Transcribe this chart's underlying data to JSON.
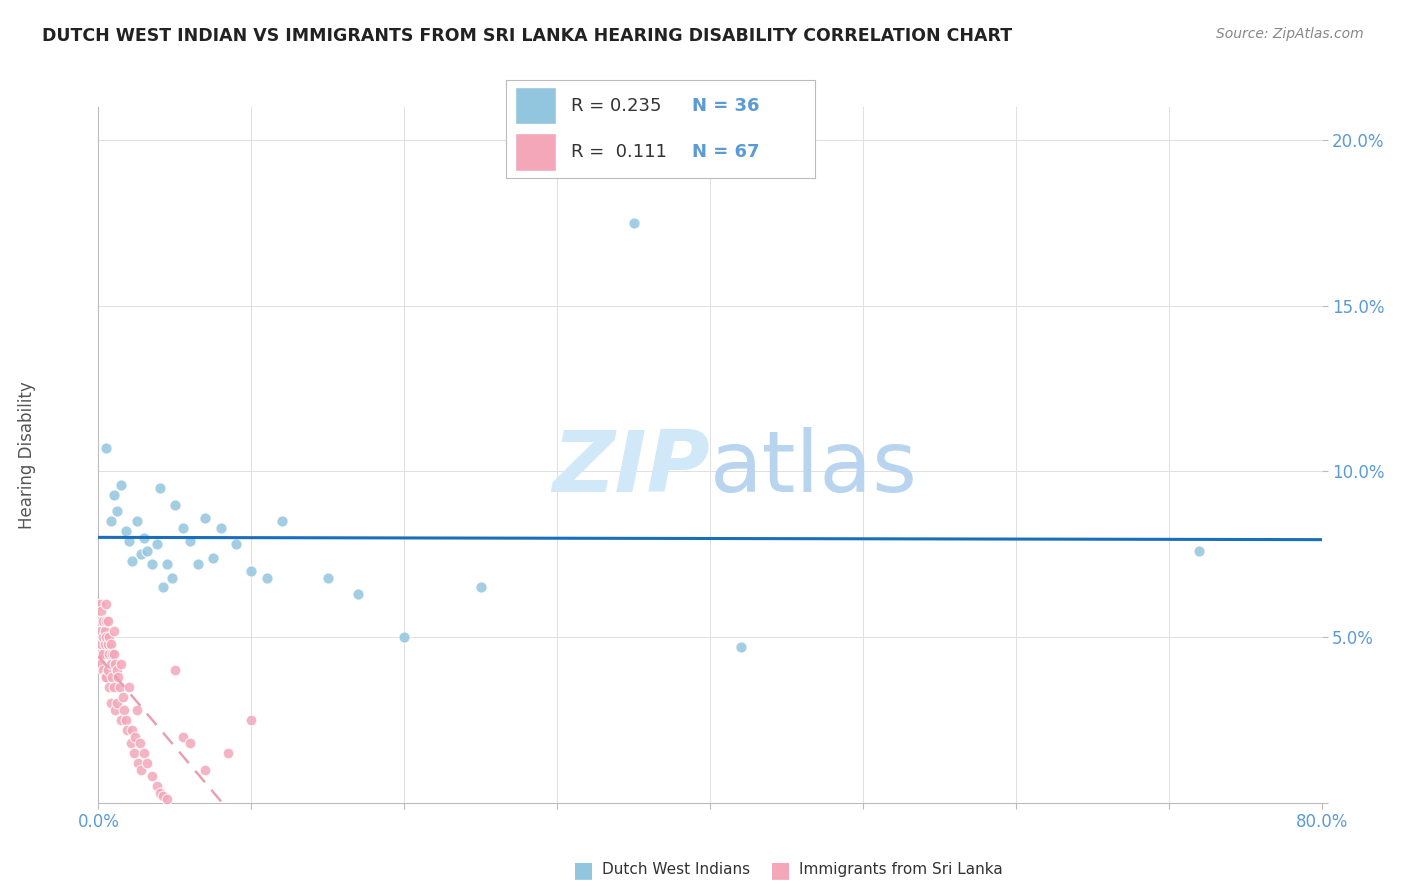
{
  "title": "DUTCH WEST INDIAN VS IMMIGRANTS FROM SRI LANKA HEARING DISABILITY CORRELATION CHART",
  "source": "Source: ZipAtlas.com",
  "ylabel": "Hearing Disability",
  "xlabel": "",
  "xlim": [
    0.0,
    0.8
  ],
  "ylim": [
    0.0,
    0.21
  ],
  "xticks": [
    0.0,
    0.1,
    0.2,
    0.3,
    0.4,
    0.5,
    0.6,
    0.7,
    0.8
  ],
  "xtick_labels": [
    "0.0%",
    "",
    "",
    "",
    "",
    "",
    "",
    "",
    "80.0%"
  ],
  "yticks": [
    0.0,
    0.05,
    0.1,
    0.15,
    0.2
  ],
  "ytick_labels": [
    "",
    "5.0%",
    "10.0%",
    "15.0%",
    "20.0%"
  ],
  "background_color": "#ffffff",
  "grid_color": "#e0e0e0",
  "title_color": "#222222",
  "axis_color": "#5b9bd5",
  "watermark_color": "#d0e8f8",
  "legend_r1_text": "R = 0.235",
  "legend_n1_text": "N = 36",
  "legend_r2_text": "R =  0.111",
  "legend_n2_text": "N = 67",
  "color_blue": "#92c5de",
  "color_pink": "#f4a7b9",
  "trend_blue": "#1a6fbd",
  "trend_pink": "#e8a0b0",
  "blue_x": [
    0.005,
    0.008,
    0.01,
    0.012,
    0.015,
    0.018,
    0.02,
    0.022,
    0.025,
    0.028,
    0.03,
    0.032,
    0.035,
    0.038,
    0.04,
    0.042,
    0.045,
    0.048,
    0.05,
    0.055,
    0.06,
    0.065,
    0.07,
    0.075,
    0.08,
    0.09,
    0.1,
    0.11,
    0.12,
    0.15,
    0.17,
    0.2,
    0.25,
    0.35,
    0.42,
    0.72
  ],
  "blue_y": [
    0.107,
    0.085,
    0.093,
    0.088,
    0.096,
    0.082,
    0.079,
    0.073,
    0.085,
    0.075,
    0.08,
    0.076,
    0.072,
    0.078,
    0.095,
    0.065,
    0.072,
    0.068,
    0.09,
    0.083,
    0.079,
    0.072,
    0.086,
    0.074,
    0.083,
    0.078,
    0.07,
    0.068,
    0.085,
    0.068,
    0.063,
    0.05,
    0.065,
    0.175,
    0.047,
    0.076
  ],
  "pink_x": [
    0.001,
    0.001,
    0.001,
    0.001,
    0.002,
    0.002,
    0.002,
    0.002,
    0.003,
    0.003,
    0.003,
    0.003,
    0.004,
    0.004,
    0.004,
    0.005,
    0.005,
    0.005,
    0.005,
    0.006,
    0.006,
    0.006,
    0.007,
    0.007,
    0.007,
    0.008,
    0.008,
    0.008,
    0.009,
    0.009,
    0.01,
    0.01,
    0.01,
    0.011,
    0.011,
    0.012,
    0.012,
    0.013,
    0.014,
    0.015,
    0.015,
    0.016,
    0.017,
    0.018,
    0.019,
    0.02,
    0.021,
    0.022,
    0.023,
    0.024,
    0.025,
    0.026,
    0.027,
    0.028,
    0.03,
    0.032,
    0.035,
    0.038,
    0.04,
    0.042,
    0.045,
    0.05,
    0.055,
    0.06,
    0.07,
    0.085,
    0.1
  ],
  "pink_y": [
    0.06,
    0.055,
    0.05,
    0.045,
    0.058,
    0.052,
    0.048,
    0.042,
    0.055,
    0.05,
    0.045,
    0.04,
    0.052,
    0.048,
    0.038,
    0.06,
    0.055,
    0.05,
    0.038,
    0.055,
    0.048,
    0.04,
    0.05,
    0.045,
    0.035,
    0.048,
    0.042,
    0.03,
    0.045,
    0.038,
    0.052,
    0.045,
    0.035,
    0.042,
    0.028,
    0.04,
    0.03,
    0.038,
    0.035,
    0.042,
    0.025,
    0.032,
    0.028,
    0.025,
    0.022,
    0.035,
    0.018,
    0.022,
    0.015,
    0.02,
    0.028,
    0.012,
    0.018,
    0.01,
    0.015,
    0.012,
    0.008,
    0.005,
    0.003,
    0.002,
    0.001,
    0.04,
    0.02,
    0.018,
    0.01,
    0.015,
    0.025
  ]
}
